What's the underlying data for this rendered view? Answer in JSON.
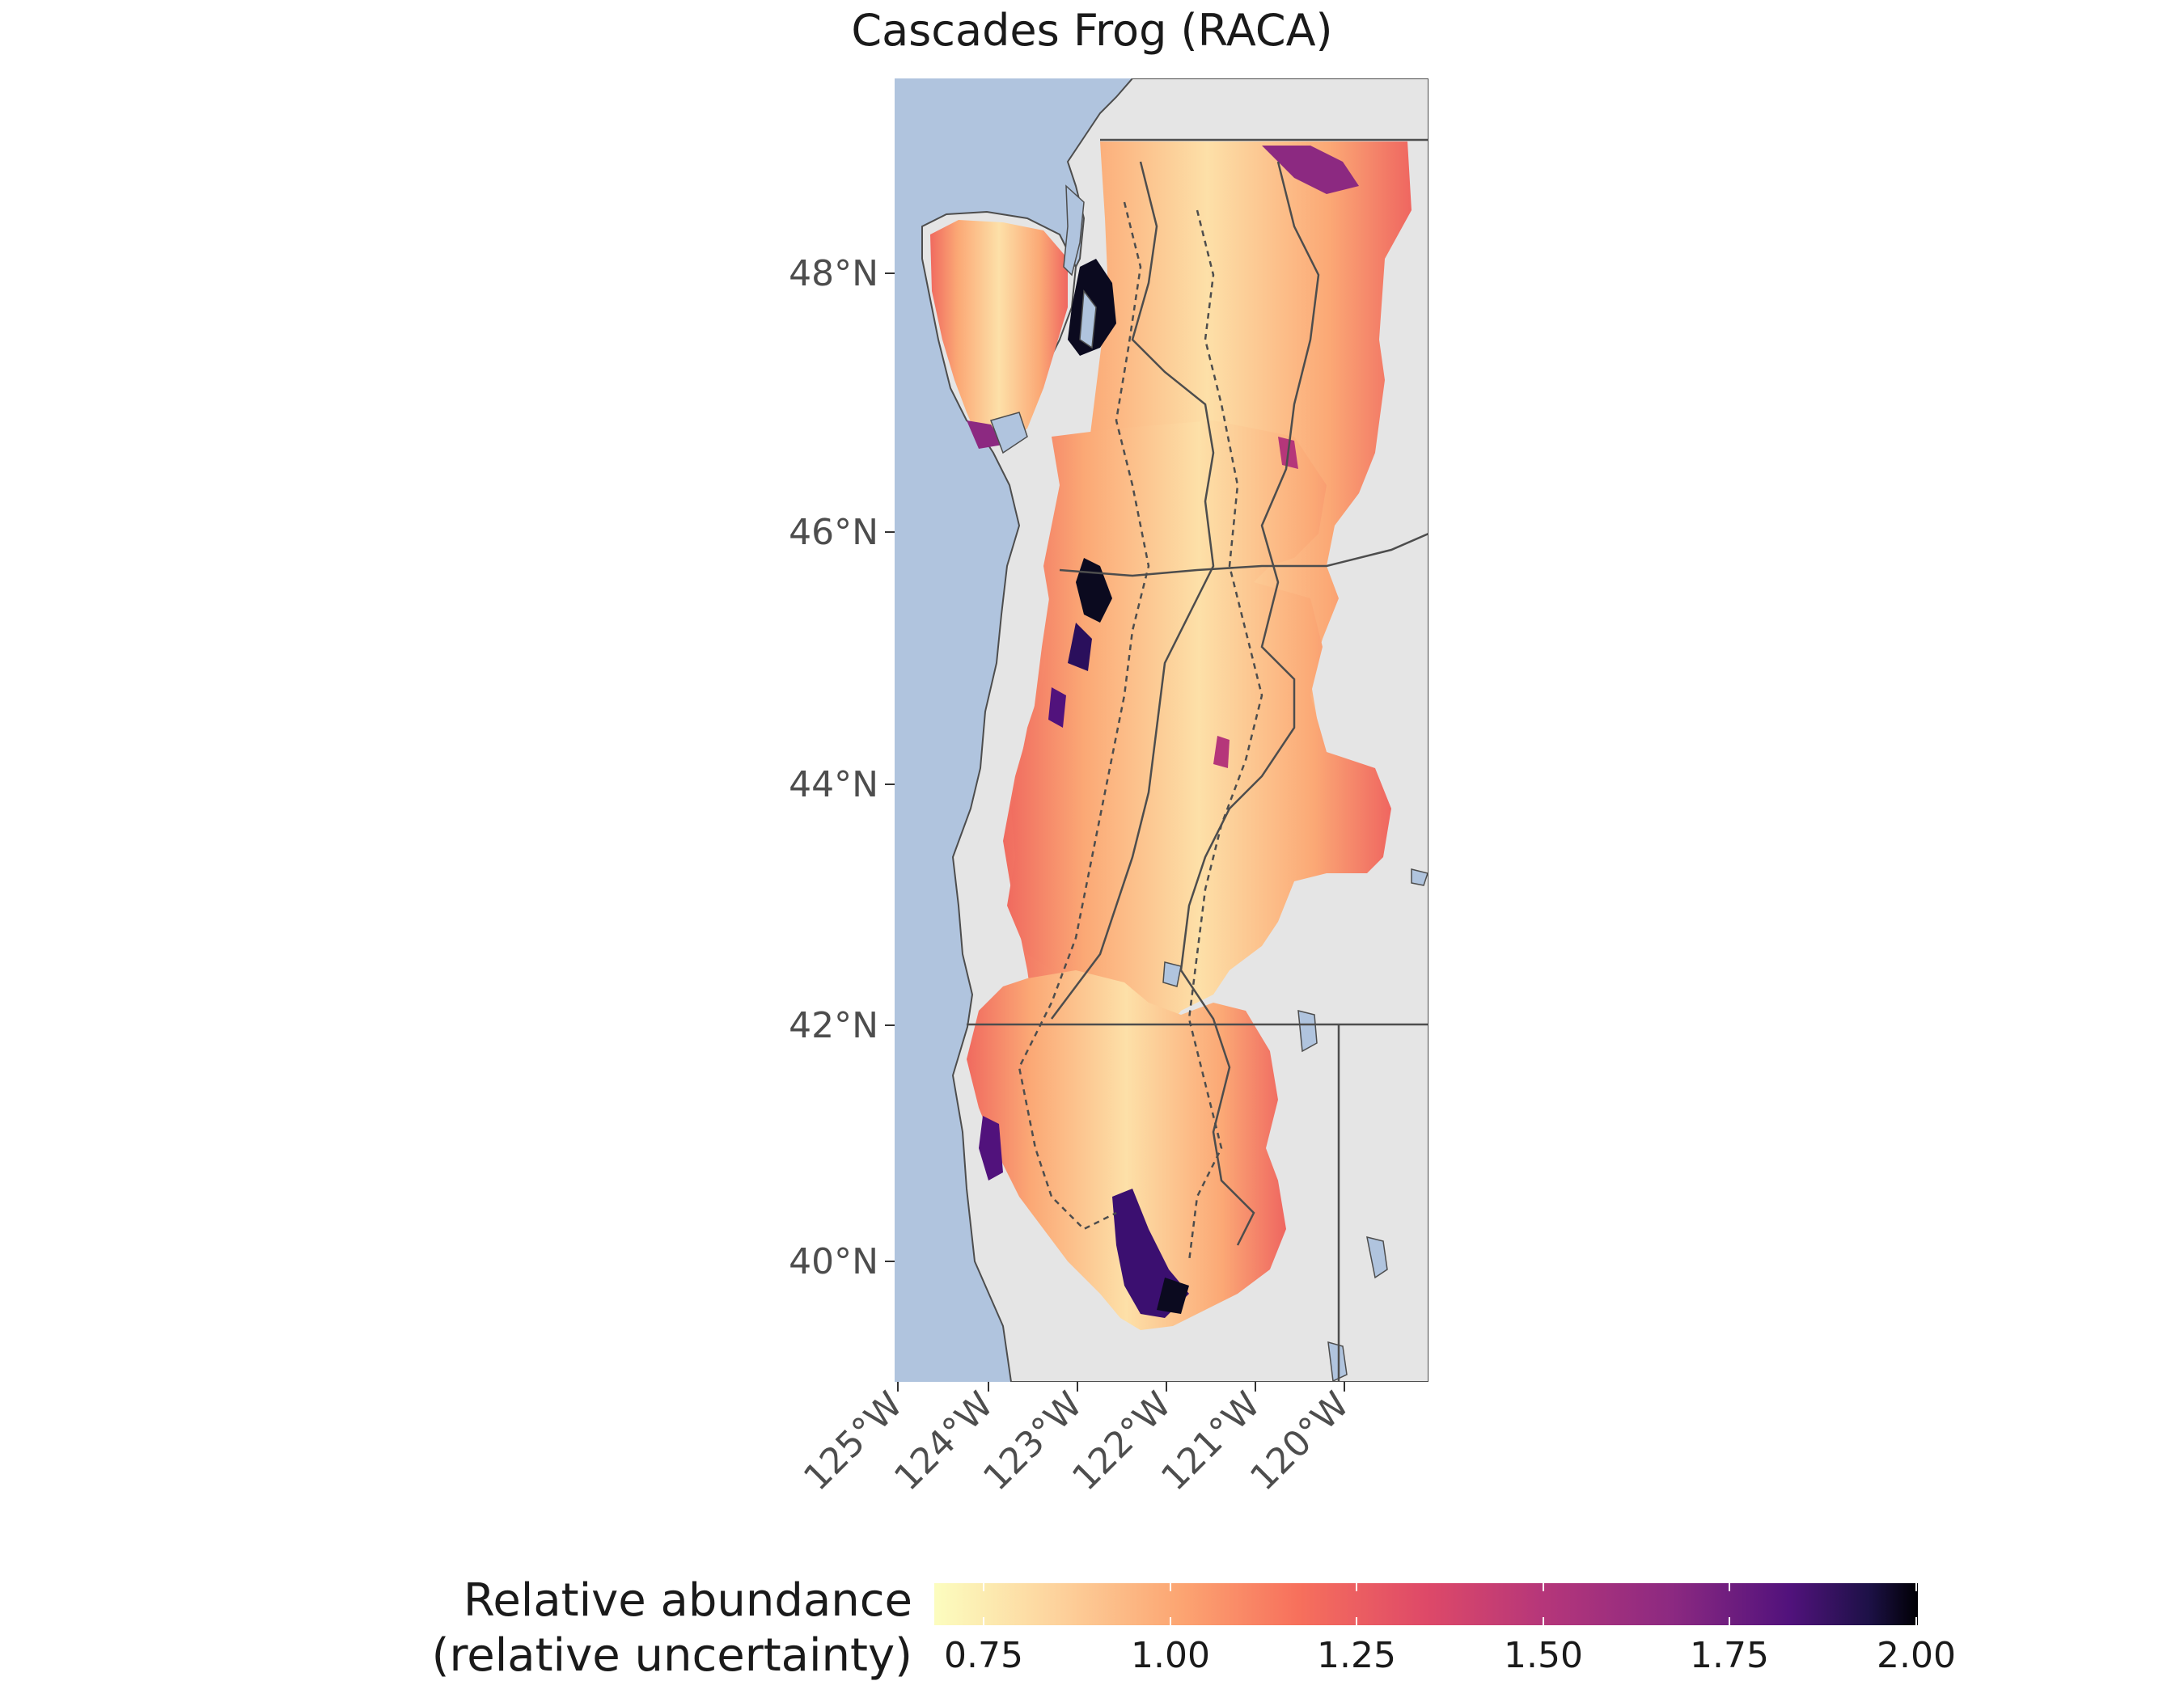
{
  "title": "Cascades Frog (RACA)",
  "map": {
    "lat_ticks": [
      "48°N",
      "46°N",
      "44°N",
      "42°N",
      "40°N"
    ],
    "lon_ticks": [
      "125°W",
      "124°W",
      "123°W",
      "122°W",
      "121°W",
      "120°W"
    ],
    "colors": {
      "ocean": "#b0c4de",
      "land": "#e5e5e5",
      "border": "#4d4d4d",
      "low": "#fcfdbf",
      "mid": "#f1605d",
      "high": "#000004"
    }
  },
  "legend": {
    "title_line1": "Relative abundance",
    "title_line2": "(relative uncertainty)",
    "ticks": [
      "0.75",
      "1.00",
      "1.25",
      "1.50",
      "1.75",
      "2.00"
    ],
    "scale": "magma"
  }
}
